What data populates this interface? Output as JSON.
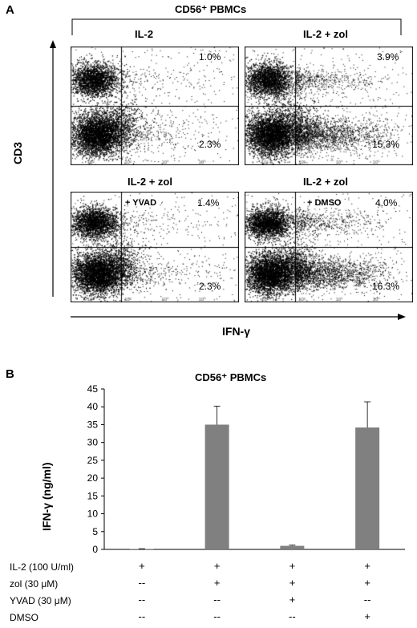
{
  "panel_a": {
    "label": "A",
    "header": "CD56⁺ PBMCs",
    "y_axis_label": "CD3",
    "x_axis_label": "IFN-γ",
    "plots": [
      {
        "title": "IL-2",
        "condition": "",
        "upper_right": "1.0%",
        "lower_right": "2.3%"
      },
      {
        "title": "IL-2 + zol",
        "condition": "",
        "upper_right": "3.9%",
        "lower_right": "15.3%"
      },
      {
        "title": "IL-2 + zol",
        "condition": "+ YVAD",
        "upper_right": "1.4%",
        "lower_right": "2.3%"
      },
      {
        "title": "IL-2 + zol",
        "condition": "+ DMSO",
        "upper_right": "4.0%",
        "lower_right": "16.3%"
      }
    ]
  },
  "panel_b": {
    "label": "B",
    "title": "CD56⁺ PBMCs",
    "ylabel": "IFN-γ (ng/ml)",
    "bar_color": "#808080",
    "treatment_rows": [
      {
        "label": "IL-2 (100 U/ml)",
        "marks": [
          "+",
          "+",
          "+",
          "+"
        ]
      },
      {
        "label": "zol (30 μM)",
        "marks": [
          "--",
          "+",
          "+",
          "+"
        ]
      },
      {
        "label": "YVAD (30 μM)",
        "marks": [
          "--",
          "--",
          "+",
          "--"
        ]
      },
      {
        "label": "DMSO",
        "marks": [
          "--",
          "--",
          "--",
          "+"
        ]
      }
    ]
  },
  "chart_data": {
    "type": "bar",
    "title": "CD56⁺ PBMCs",
    "xlabel": "",
    "ylabel": "IFN-γ (ng/ml)",
    "ylim": [
      0,
      45
    ],
    "yticks": [
      0,
      5,
      10,
      15,
      20,
      25,
      30,
      35,
      40,
      45
    ],
    "values": [
      0.1,
      35.0,
      1.0,
      34.2
    ],
    "errors": [
      0.1,
      5.2,
      0.2,
      7.2
    ],
    "grid": false
  }
}
